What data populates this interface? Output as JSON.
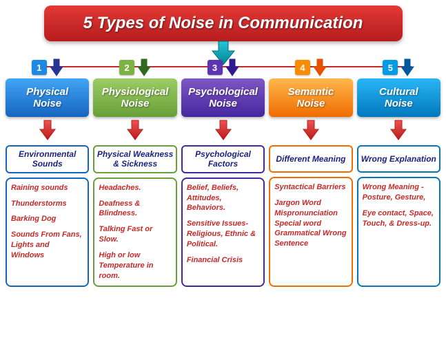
{
  "title": "5 Types of Noise in Communication",
  "title_bg": "#c62828",
  "big_arrow_color": "#0097b2",
  "hline_color": "#c62828",
  "columns": [
    {
      "num": "1",
      "num_bg": "#1e88e5",
      "small_arrow_color": "#283593",
      "cat_label": "Physical Noise",
      "cat_bg_top": "#42a5f5",
      "cat_bg_bot": "#1565c0",
      "sub_label": "Environmental Sounds",
      "sub_border": "#1565c0",
      "detail_border": "#1565c0",
      "detail_color": "#c62828",
      "details": [
        "Raining sounds",
        "Thunderstorms",
        "Barking Dog",
        "Sounds From Fans, Lights and Windows"
      ]
    },
    {
      "num": "2",
      "num_bg": "#7cb342",
      "small_arrow_color": "#33691e",
      "cat_label": "Physiological Noise",
      "cat_bg_top": "#9ccc65",
      "cat_bg_bot": "#689f38",
      "sub_label": "Physical Weakness & Sickness",
      "sub_border": "#689f38",
      "detail_border": "#689f38",
      "detail_color": "#c62828",
      "details": [
        "Headaches.",
        "Deafness & Blindness.",
        "Talking  Fast or Slow.",
        "High or low Temperature  in room."
      ]
    },
    {
      "num": "3",
      "num_bg": "#5e35b1",
      "small_arrow_color": "#311b92",
      "cat_label": "Psychological Noise",
      "cat_bg_top": "#7e57c2",
      "cat_bg_bot": "#4527a0",
      "sub_label": "Psychological Factors",
      "sub_border": "#4527a0",
      "detail_border": "#4527a0",
      "detail_color": "#c62828",
      "details": [
        "Belief, Beliefs, Attitudes, Behaviors.",
        "Sensitive Issues- Religious, Ethnic & Political.",
        "Financial Crisis"
      ]
    },
    {
      "num": "4",
      "num_bg": "#fb8c00",
      "small_arrow_color": "#e65100",
      "cat_label": "Semantic Noise",
      "cat_bg_top": "#ffb74d",
      "cat_bg_bot": "#ef6c00",
      "sub_label": "Different Meaning",
      "sub_border": "#ef6c00",
      "detail_border": "#ef6c00",
      "detail_color": "#c62828",
      "details": [
        "Syntactical Barriers",
        "Jargon Word Mispronunciation Special word Grammatical Wrong  Sentence"
      ]
    },
    {
      "num": "5",
      "num_bg": "#039be5",
      "small_arrow_color": "#01579b",
      "cat_label": "Cultural Noise",
      "cat_bg_top": "#29b6f6",
      "cat_bg_bot": "#0277bd",
      "sub_label": "Wrong Explanation",
      "sub_border": "#0277bd",
      "detail_border": "#0277bd",
      "detail_color": "#c62828",
      "details": [
        "Wrong Meaning - Posture, Gesture,",
        "Eye contact, Space, Touch, & Dress-up."
      ]
    }
  ]
}
